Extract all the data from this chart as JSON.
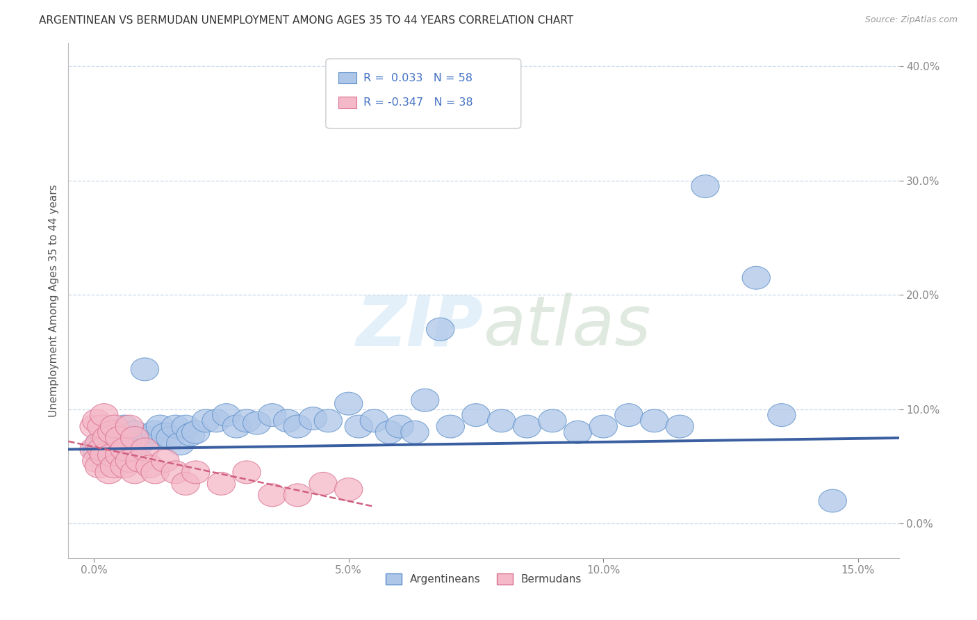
{
  "title": "ARGENTINEAN VS BERMUDAN UNEMPLOYMENT AMONG AGES 35 TO 44 YEARS CORRELATION CHART",
  "source": "Source: ZipAtlas.com",
  "xlabel_vals": [
    0.0,
    5.0,
    10.0,
    15.0
  ],
  "ylabel_vals": [
    0.0,
    10.0,
    20.0,
    30.0,
    40.0
  ],
  "xlim": [
    -0.5,
    15.8
  ],
  "ylim": [
    -3.0,
    42.0
  ],
  "R_arg": 0.033,
  "N_arg": 58,
  "R_ber": -0.347,
  "N_ber": 38,
  "arg_color": "#aec6e8",
  "arg_edge_color": "#5b8fc9",
  "arg_line_color": "#3a5fa0",
  "ber_color": "#f4b8c8",
  "ber_edge_color": "#d97090",
  "ber_line_color": "#d06080",
  "watermark_color": "#cce5f5",
  "arg_x": [
    0.05,
    0.1,
    0.15,
    0.2,
    0.25,
    0.3,
    0.35,
    0.4,
    0.45,
    0.5,
    0.6,
    0.7,
    0.8,
    0.9,
    1.0,
    1.1,
    1.2,
    1.3,
    1.4,
    1.5,
    1.6,
    1.7,
    1.8,
    1.9,
    2.0,
    2.2,
    2.4,
    2.6,
    2.8,
    3.0,
    3.2,
    3.5,
    3.8,
    4.0,
    4.3,
    4.6,
    5.0,
    5.2,
    5.5,
    5.8,
    6.0,
    6.3,
    6.5,
    6.8,
    7.0,
    7.5,
    8.0,
    8.5,
    9.0,
    9.5,
    10.0,
    10.5,
    11.0,
    11.5,
    12.0,
    13.0,
    13.5,
    14.5
  ],
  "arg_y": [
    6.5,
    7.0,
    6.8,
    7.2,
    6.5,
    7.5,
    6.0,
    7.8,
    8.0,
    7.0,
    8.5,
    7.5,
    8.0,
    7.0,
    13.5,
    7.5,
    8.0,
    8.5,
    7.8,
    7.5,
    8.5,
    7.0,
    8.5,
    7.8,
    8.0,
    9.0,
    9.0,
    9.5,
    8.5,
    9.0,
    8.8,
    9.5,
    9.0,
    8.5,
    9.2,
    9.0,
    10.5,
    8.5,
    9.0,
    8.0,
    8.5,
    8.0,
    10.8,
    17.0,
    8.5,
    9.5,
    9.0,
    8.5,
    9.0,
    8.0,
    8.5,
    9.5,
    9.0,
    8.5,
    29.5,
    21.5,
    9.5,
    2.0
  ],
  "ber_x": [
    0.0,
    0.0,
    0.05,
    0.05,
    0.1,
    0.1,
    0.15,
    0.15,
    0.2,
    0.2,
    0.25,
    0.3,
    0.35,
    0.35,
    0.4,
    0.4,
    0.5,
    0.5,
    0.6,
    0.6,
    0.7,
    0.7,
    0.8,
    0.8,
    0.9,
    1.0,
    1.1,
    1.2,
    1.4,
    1.6,
    1.8,
    2.0,
    2.5,
    3.0,
    3.5,
    4.0,
    4.5,
    5.0
  ],
  "ber_y": [
    6.5,
    8.5,
    5.5,
    9.0,
    7.0,
    5.0,
    6.5,
    8.5,
    9.5,
    6.0,
    7.5,
    4.5,
    6.0,
    8.0,
    5.0,
    8.5,
    6.0,
    7.5,
    5.0,
    6.5,
    5.5,
    8.5,
    4.5,
    7.5,
    5.5,
    6.5,
    5.0,
    4.5,
    5.5,
    4.5,
    3.5,
    4.5,
    3.5,
    4.5,
    2.5,
    2.5,
    3.5,
    3.0
  ]
}
